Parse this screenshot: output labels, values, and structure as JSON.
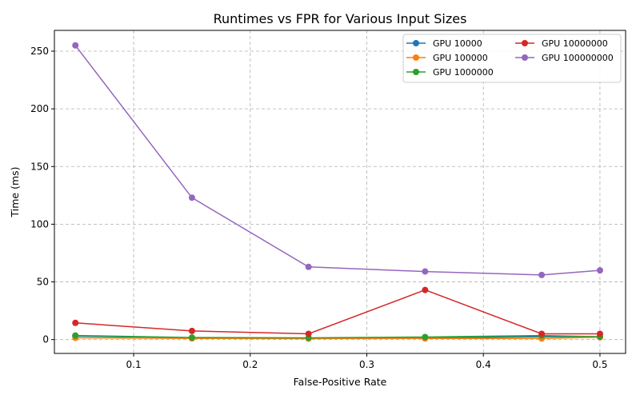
{
  "chart_data": {
    "type": "line",
    "title": "Runtimes vs FPR for Various Input Sizes",
    "xlabel": "False-Positive Rate",
    "ylabel": "Time (ms)",
    "xlim": [
      0.032,
      0.522
    ],
    "ylim": [
      -12,
      268
    ],
    "xticks": [
      0.1,
      0.2,
      0.3,
      0.4,
      0.5
    ],
    "xtick_labels": [
      "0.1",
      "0.2",
      "0.3",
      "0.4",
      "0.5"
    ],
    "yticks": [
      0,
      50,
      100,
      150,
      200,
      250
    ],
    "ytick_labels": [
      "0",
      "50",
      "100",
      "150",
      "200",
      "250"
    ],
    "grid": true,
    "legend_position": "top-right",
    "x": [
      0.05,
      0.15,
      0.25,
      0.35,
      0.45,
      0.5
    ],
    "series": [
      {
        "name": "GPU 10000",
        "color": "#1f77b4",
        "values": [
          3.0,
          1.5,
          1.2,
          1.5,
          2.5,
          2.5
        ]
      },
      {
        "name": "GPU 100000",
        "color": "#ff7f0e",
        "values": [
          1.5,
          1.0,
          0.8,
          1.0,
          1.0,
          2.0
        ]
      },
      {
        "name": "GPU 1000000",
        "color": "#2ca02c",
        "values": [
          3.5,
          1.8,
          1.5,
          2.2,
          3.5,
          2.5
        ]
      },
      {
        "name": "GPU 10000000",
        "color": "#d62728",
        "values": [
          14.5,
          7.5,
          5.0,
          43.0,
          5.0,
          5.0
        ]
      },
      {
        "name": "GPU 100000000",
        "color": "#9467bd",
        "values": [
          255.0,
          123.0,
          63.0,
          59.0,
          56.0,
          60.0
        ]
      }
    ]
  }
}
